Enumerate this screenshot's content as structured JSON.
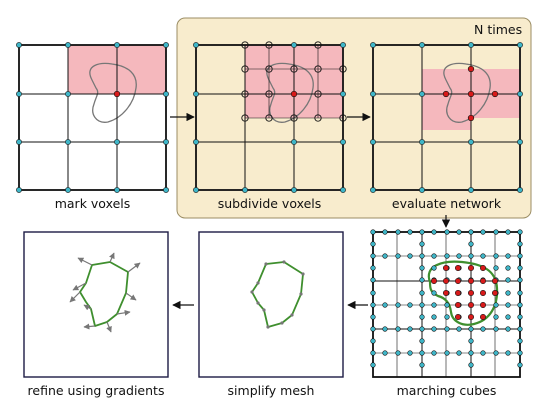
{
  "colors": {
    "background": "#ffffff",
    "loop_panel": "#f8eccd",
    "loop_border": "#9b8d64",
    "voxel_fill": "#f5b8bd",
    "grid": "#111111",
    "vertex": "#3fb6c8",
    "inside_point": "#d81a1a",
    "surface_curve": "#777777",
    "mesh": "#3f8f2e",
    "gradient_arrow": "#777777"
  },
  "loop": {
    "label": "N times"
  },
  "steps": [
    {
      "id": "mark-voxels",
      "label": "mark voxels"
    },
    {
      "id": "subdivide-voxels",
      "label": "subdivide voxels"
    },
    {
      "id": "evaluate-network",
      "label": "evaluate network"
    },
    {
      "id": "marching-cubes",
      "label": "marching cubes"
    },
    {
      "id": "simplify-mesh",
      "label": "simplify mesh"
    },
    {
      "id": "refine-using-gradients",
      "label": "refine using gradients"
    }
  ]
}
